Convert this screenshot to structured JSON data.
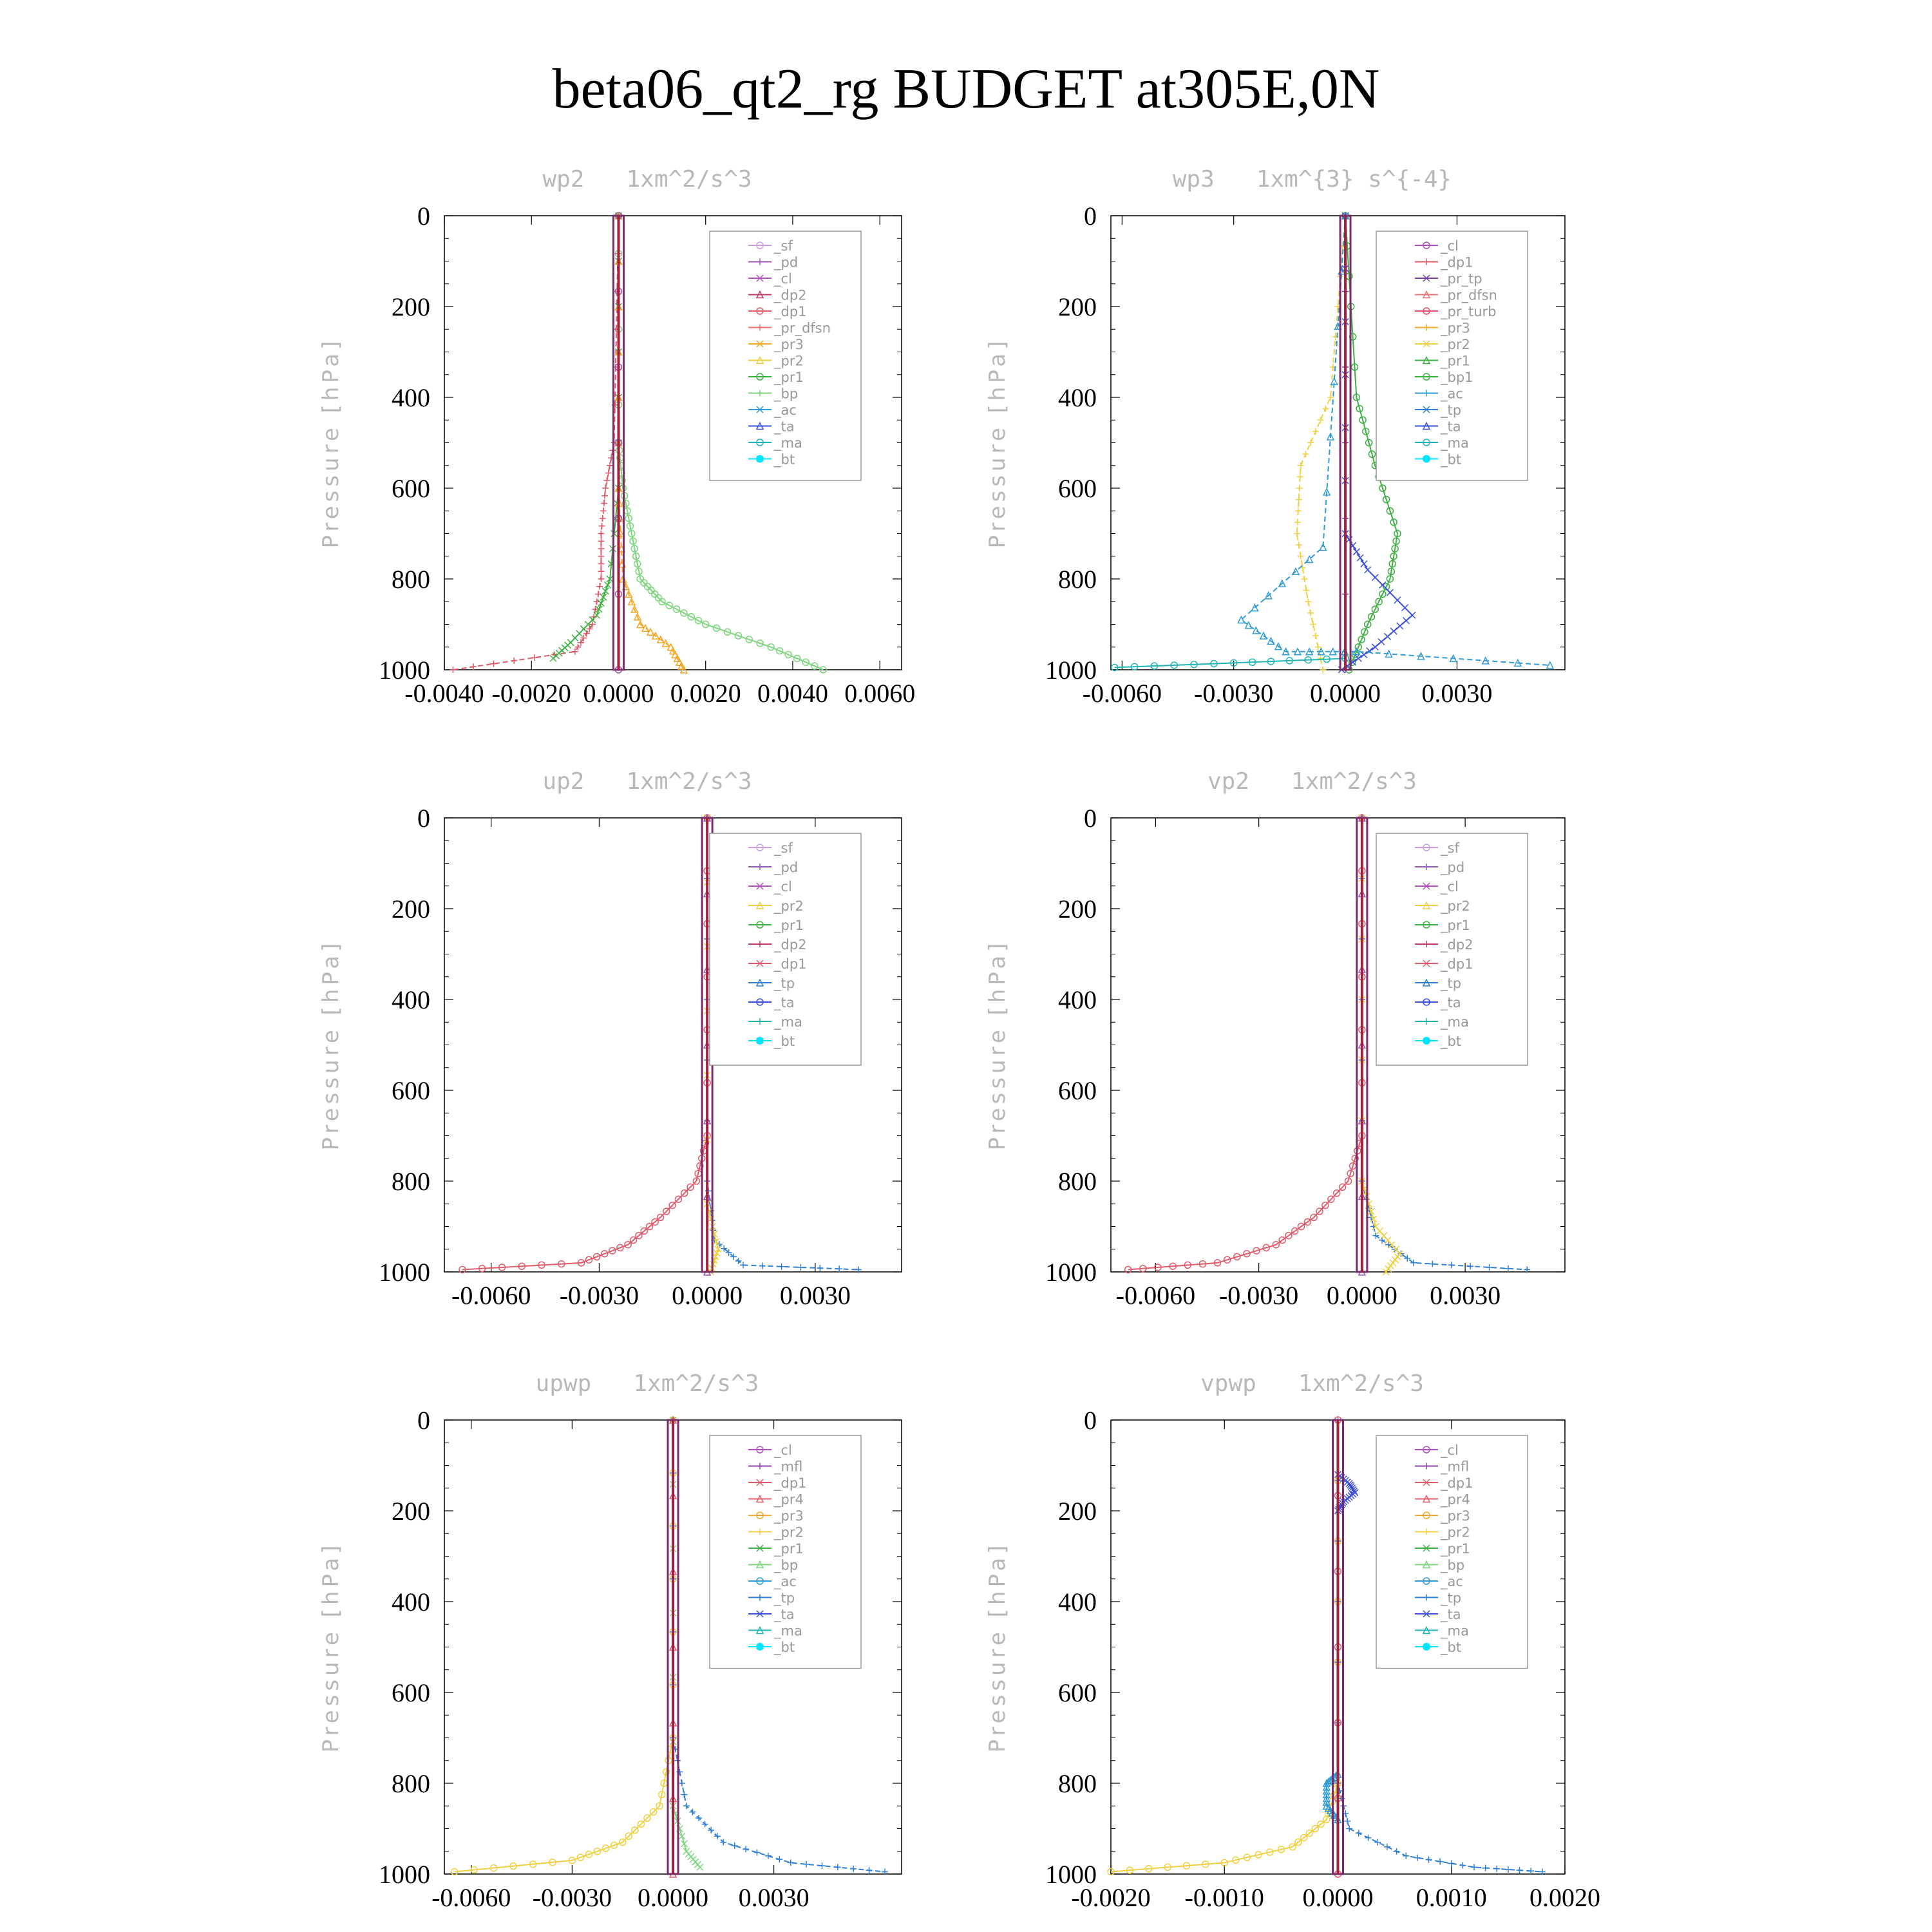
{
  "title": "beta06_qt2_rg  BUDGET at305E,0N",
  "colors": {
    "_sf": "#c9a0dc",
    "_pd": "#9b59b6",
    "_cl": "#b04fc0",
    "_dp2": "#c0396b",
    "_dp1": "#e05a6a",
    "_pr_dfsn": "#f07070",
    "_pr3": "#f5a623",
    "_pr2": "#f0d040",
    "_pr1": "#3cb043",
    "_bp": "#7cd67c",
    "_ac": "#2f9bd6",
    "_ta": "#3a4fd8",
    "_ma": "#1fb5b5",
    "_bt": "#00e5ff",
    "_pr_tp": "#7b3fa0",
    "_pr_turb": "#e0506b",
    "_bp1": "#3cb043",
    "_tp": "#2f7fd6",
    "_mfl": "#8e44ad",
    "_pr4": "#e05a6a"
  },
  "chart_data": [
    {
      "type": "line",
      "title": "wp2   1xm^2/s^3",
      "ylabel": "Pressure [hPa]",
      "ylim": [
        1000,
        0
      ],
      "xlim": [
        -0.004,
        0.0065
      ],
      "yticks": [
        "0",
        "200",
        "400",
        "600",
        "800",
        "1000"
      ],
      "xticks": [
        "-0.0040",
        "-0.0020",
        "0.0000",
        "0.0020",
        "0.0040",
        "0.0060"
      ],
      "legend_position": "top-right",
      "legend": [
        "_sf",
        "_pd",
        "_cl",
        "_dp2",
        "_dp1",
        "_pr_dfsn",
        "_pr3",
        "_pr2",
        "_pr1",
        "_bp",
        "_ac",
        "_ta",
        "_ma",
        "_bt"
      ],
      "series": [
        {
          "name": "_bp",
          "x": [
            0,
            0,
            0.0001,
            0.0003,
            0.0005,
            0.001,
            0.002,
            0.0035,
            0.0047
          ],
          "y": [
            0,
            500,
            600,
            700,
            800,
            850,
            900,
            950,
            1000
          ]
        },
        {
          "name": "_dp1",
          "x": [
            0,
            -0.0001,
            -0.0003,
            -0.0004,
            -0.0004,
            -0.0006,
            -0.001,
            -0.0038
          ],
          "y": [
            0,
            500,
            600,
            700,
            800,
            900,
            960,
            1000
          ]
        },
        {
          "name": "_pr1",
          "x": [
            0,
            0,
            -0.0002,
            -0.0005,
            -0.0011,
            -0.0015
          ],
          "y": [
            0,
            600,
            800,
            880,
            940,
            975
          ]
        },
        {
          "name": "_pr3",
          "x": [
            0,
            0,
            0.0001,
            0.0005,
            0.0012,
            0.0015
          ],
          "y": [
            0,
            600,
            800,
            900,
            950,
            1000
          ]
        },
        {
          "name": "_pd",
          "x": [
            0,
            0
          ],
          "y": [
            0,
            1000
          ]
        }
      ]
    },
    {
      "type": "line",
      "title": "wp3   1xm^{3} s^{-4}",
      "ylabel": "Pressure [hPa]",
      "ylim": [
        1000,
        0
      ],
      "xlim": [
        -0.0063,
        0.0059
      ],
      "yticks": [
        "0",
        "200",
        "400",
        "600",
        "800",
        "1000"
      ],
      "xticks": [
        "-0.0060",
        "-0.0030",
        "0.0000",
        "0.0030"
      ],
      "legend_position": "top-right",
      "legend": [
        "_cl",
        "_dp1",
        "_pr_tp",
        "_pr_dfsn",
        "_pr_turb",
        "_pr3",
        "_pr2",
        "_pr1",
        "_bp1",
        "_ac",
        "_tp",
        "_ta",
        "_ma",
        "_bt"
      ],
      "series": [
        {
          "name": "_bp1",
          "x": [
            0,
            0.0003,
            0.0008,
            0.0014,
            0.0012,
            0.0006,
            0.0001
          ],
          "y": [
            0,
            400,
            550,
            700,
            800,
            900,
            1000
          ]
        },
        {
          "name": "_pr2",
          "x": [
            0,
            -0.0004,
            -0.0012,
            -0.0013,
            -0.001,
            -0.0006
          ],
          "y": [
            0,
            400,
            550,
            700,
            850,
            1000
          ]
        },
        {
          "name": "_ta",
          "x": [
            0,
            0,
            0.0006,
            0.0018,
            0.0008,
            -0.0001
          ],
          "y": [
            0,
            700,
            780,
            880,
            950,
            1000
          ]
        },
        {
          "name": "_ac",
          "x": [
            0,
            -0.0006,
            -0.0028,
            -0.0016,
            0.0003,
            0.0055
          ],
          "y": [
            0,
            730,
            890,
            960,
            960,
            990
          ]
        },
        {
          "name": "_ma",
          "x": [
            -0.0062,
            -0.003,
            0
          ],
          "y": [
            995,
            985,
            975
          ]
        },
        {
          "name": "_pr_tp",
          "x": [
            0,
            0
          ],
          "y": [
            0,
            1000
          ]
        }
      ]
    },
    {
      "type": "line",
      "title": "up2   1xm^2/s^3",
      "ylabel": "Pressure [hPa]",
      "ylim": [
        1000,
        0
      ],
      "xlim": [
        -0.0073,
        0.0054
      ],
      "yticks": [
        "0",
        "200",
        "400",
        "600",
        "800",
        "1000"
      ],
      "xticks": [
        "-0.0060",
        "-0.0030",
        "0.0000",
        "0.0030"
      ],
      "legend_position": "top-right",
      "legend": [
        "_sf",
        "_pd",
        "_cl",
        "_pr2",
        "_pr1",
        "_dp2",
        "_dp1",
        "_tp",
        "_ta",
        "_ma",
        "_bt"
      ],
      "series": [
        {
          "name": "_dp1",
          "x": [
            0,
            0,
            -0.0003,
            -0.0013,
            -0.0022,
            -0.0035,
            -0.0068
          ],
          "y": [
            0,
            700,
            800,
            880,
            940,
            980,
            995
          ]
        },
        {
          "name": "_tp",
          "x": [
            0,
            0,
            0.0002,
            0.001,
            0.0042
          ],
          "y": [
            0,
            800,
            930,
            985,
            995
          ]
        },
        {
          "name": "_pr2",
          "x": [
            0,
            0,
            0.0003,
            0.0001
          ],
          "y": [
            0,
            850,
            950,
            1000
          ]
        },
        {
          "name": "_pd",
          "x": [
            0,
            0
          ],
          "y": [
            0,
            1000
          ]
        }
      ]
    },
    {
      "type": "line",
      "title": "vp2   1xm^2/s^3",
      "ylabel": "Pressure [hPa]",
      "ylim": [
        1000,
        0
      ],
      "xlim": [
        -0.0073,
        0.0059
      ],
      "yticks": [
        "0",
        "200",
        "400",
        "600",
        "800",
        "1000"
      ],
      "xticks": [
        "-0.0060",
        "-0.0030",
        "0.0000",
        "0.0030"
      ],
      "legend_position": "top-right",
      "legend": [
        "_sf",
        "_pd",
        "_cl",
        "_pr2",
        "_pr1",
        "_dp2",
        "_dp1",
        "_tp",
        "_ta",
        "_ma",
        "_bt"
      ],
      "series": [
        {
          "name": "_dp1",
          "x": [
            0,
            0,
            -0.0004,
            -0.0014,
            -0.0025,
            -0.0042,
            -0.0068
          ],
          "y": [
            0,
            700,
            800,
            880,
            940,
            980,
            995
          ]
        },
        {
          "name": "_tp",
          "x": [
            0,
            0,
            0.0004,
            0.0015,
            0.0048
          ],
          "y": [
            0,
            800,
            920,
            980,
            995
          ]
        },
        {
          "name": "_pr2",
          "x": [
            0,
            0,
            0.0004,
            0.0011,
            0.0007
          ],
          "y": [
            0,
            800,
            900,
            960,
            1000
          ]
        },
        {
          "name": "_pd",
          "x": [
            0,
            0
          ],
          "y": [
            0,
            1000
          ]
        }
      ]
    },
    {
      "type": "line",
      "title": "upwp   1xm^2/s^3",
      "ylabel": "Pressure [hPa]",
      "ylim": [
        1000,
        0
      ],
      "xlim": [
        -0.0068,
        0.0068
      ],
      "yticks": [
        "0",
        "200",
        "400",
        "600",
        "800",
        "1000"
      ],
      "xticks": [
        "-0.0060",
        "-0.0030",
        "0.0000",
        "0.0030"
      ],
      "legend_position": "top-right",
      "legend": [
        "_cl",
        "_mfl",
        "_dp1",
        "_pr4",
        "_pr3",
        "_pr2",
        "_pr1",
        "_bp",
        "_ac",
        "_tp",
        "_ta",
        "_ma",
        "_bt"
      ],
      "series": [
        {
          "name": "_pr2",
          "x": [
            0,
            0,
            -0.0004,
            -0.0015,
            -0.003,
            -0.0065
          ],
          "y": [
            0,
            700,
            850,
            930,
            970,
            995
          ]
        },
        {
          "name": "_tp",
          "x": [
            0,
            0,
            0.0004,
            0.0015,
            0.0035,
            0.0063
          ],
          "y": [
            0,
            700,
            850,
            930,
            975,
            995
          ]
        },
        {
          "name": "_bp",
          "x": [
            0,
            0,
            0.0004,
            0.0008
          ],
          "y": [
            0,
            850,
            950,
            985
          ]
        },
        {
          "name": "_dp1",
          "x": [
            0,
            0
          ],
          "y": [
            0,
            1000
          ]
        }
      ]
    },
    {
      "type": "line",
      "title": "vpwp   1xm^2/s^3",
      "ylabel": "Pressure [hPa]",
      "ylim": [
        1000,
        0
      ],
      "xlim": [
        -0.002,
        0.002
      ],
      "yticks": [
        "0",
        "200",
        "400",
        "600",
        "800",
        "1000"
      ],
      "xticks": [
        "-0.0020",
        "-0.0010",
        "0.0000",
        "0.0010",
        "0.0020"
      ],
      "legend_position": "top-right",
      "legend": [
        "_cl",
        "_mfl",
        "_dp1",
        "_pr4",
        "_pr3",
        "_pr2",
        "_pr1",
        "_bp",
        "_ac",
        "_tp",
        "_ta",
        "_ma",
        "_bt"
      ],
      "series": [
        {
          "name": "_pr2",
          "x": [
            0,
            0,
            -0.0001,
            -0.0004,
            -0.001,
            -0.002
          ],
          "y": [
            0,
            800,
            880,
            940,
            975,
            995
          ]
        },
        {
          "name": "_tp",
          "x": [
            0,
            0,
            0.0001,
            0.0006,
            0.0012,
            0.0018
          ],
          "y": [
            0,
            800,
            900,
            960,
            985,
            995
          ]
        },
        {
          "name": "_ta",
          "x": [
            0,
            0.0001,
            0.00015,
            5e-05,
            0
          ],
          "y": [
            120,
            140,
            160,
            180,
            200
          ]
        },
        {
          "name": "_ac",
          "x": [
            0,
            -0.0001,
            -0.0001,
            0
          ],
          "y": [
            780,
            800,
            850,
            880
          ]
        },
        {
          "name": "_dp1",
          "x": [
            0,
            0
          ],
          "y": [
            0,
            1000
          ]
        }
      ]
    }
  ]
}
